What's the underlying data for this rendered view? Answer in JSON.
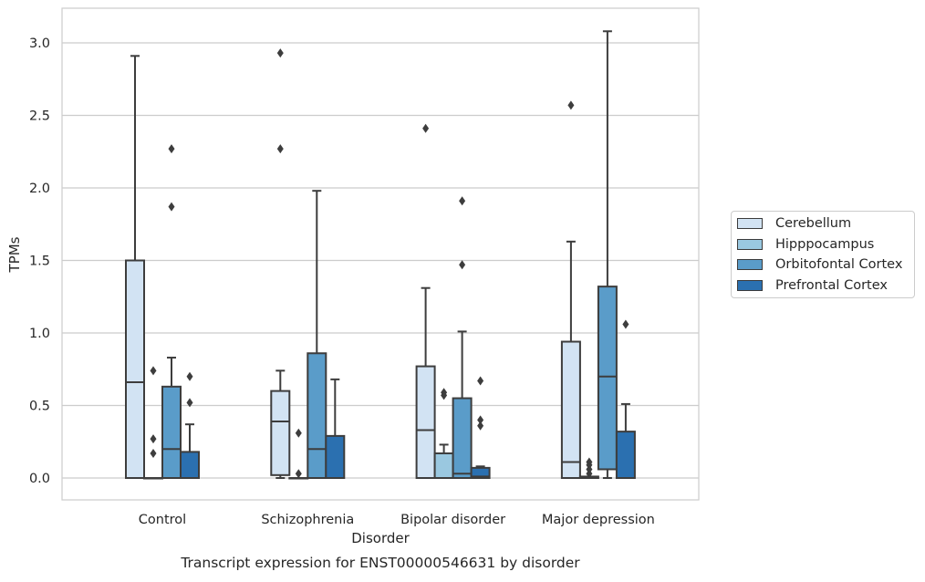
{
  "chart_data": {
    "type": "box",
    "xlabel": "Disorder",
    "ylabel": "TPMs",
    "caption": "Transcript expression for ENST00000546631 by disorder",
    "ylim": [
      -0.15,
      3.24
    ],
    "yticks": [
      "0.0",
      "0.5",
      "1.0",
      "1.5",
      "2.0",
      "2.5",
      "3.0"
    ],
    "categories": [
      "Control",
      "Schizophrenia",
      "Bipolar disorder",
      "Major depression"
    ],
    "grid": "horizontal",
    "legend_position": "right",
    "series": [
      {
        "name": "Cerebellum",
        "color": "#d2e3f3",
        "boxes": [
          {
            "whislo": 0.0,
            "q1": 0.0,
            "med": 0.66,
            "q3": 1.5,
            "whishi": 2.91,
            "fliers": []
          },
          {
            "whislo": 0.0,
            "q1": 0.02,
            "med": 0.39,
            "q3": 0.6,
            "whishi": 0.74,
            "fliers": [
              2.27,
              2.93
            ]
          },
          {
            "whislo": 0.0,
            "q1": 0.0,
            "med": 0.33,
            "q3": 0.77,
            "whishi": 1.31,
            "fliers": [
              2.41
            ]
          },
          {
            "whislo": 0.0,
            "q1": 0.0,
            "med": 0.11,
            "q3": 0.94,
            "whishi": 1.63,
            "fliers": [
              2.57
            ]
          }
        ]
      },
      {
        "name": "Hipppocampus",
        "color": "#9ac8e0",
        "boxes": [
          {
            "whislo": 0.0,
            "q1": 0.0,
            "med": 0.0,
            "q3": 0.0,
            "whishi": 0.0,
            "fliers": [
              0.17,
              0.27,
              0.74
            ]
          },
          {
            "whislo": 0.0,
            "q1": 0.0,
            "med": 0.0,
            "q3": 0.0,
            "whishi": 0.0,
            "fliers": [
              0.03,
              0.31
            ]
          },
          {
            "whislo": 0.0,
            "q1": 0.0,
            "med": 0.0,
            "q3": 0.17,
            "whishi": 0.23,
            "fliers": [
              0.57,
              0.59
            ]
          },
          {
            "whislo": 0.0,
            "q1": 0.0,
            "med": 0.0,
            "q3": 0.01,
            "whishi": 0.01,
            "fliers": [
              0.03,
              0.06,
              0.09,
              0.11
            ]
          }
        ]
      },
      {
        "name": "Orbitofontal Cortex",
        "color": "#5a9cc9",
        "boxes": [
          {
            "whislo": 0.0,
            "q1": 0.0,
            "med": 0.2,
            "q3": 0.63,
            "whishi": 0.83,
            "fliers": [
              1.87,
              2.27
            ]
          },
          {
            "whislo": 0.0,
            "q1": 0.0,
            "med": 0.2,
            "q3": 0.86,
            "whishi": 1.98,
            "fliers": []
          },
          {
            "whislo": 0.0,
            "q1": 0.0,
            "med": 0.03,
            "q3": 0.55,
            "whishi": 1.01,
            "fliers": [
              1.47,
              1.91
            ]
          },
          {
            "whislo": 0.0,
            "q1": 0.06,
            "med": 0.7,
            "q3": 1.32,
            "whishi": 3.08,
            "fliers": []
          }
        ]
      },
      {
        "name": "Prefrontal Cortex",
        "color": "#2b70b0",
        "boxes": [
          {
            "whislo": 0.0,
            "q1": 0.0,
            "med": 0.0,
            "q3": 0.18,
            "whishi": 0.37,
            "fliers": [
              0.52,
              0.7
            ]
          },
          {
            "whislo": 0.0,
            "q1": 0.0,
            "med": 0.0,
            "q3": 0.29,
            "whishi": 0.68,
            "fliers": []
          },
          {
            "whislo": 0.0,
            "q1": 0.0,
            "med": 0.01,
            "q3": 0.07,
            "whishi": 0.08,
            "fliers": [
              0.36,
              0.4,
              0.67
            ]
          },
          {
            "whislo": 0.0,
            "q1": 0.0,
            "med": 0.0,
            "q3": 0.32,
            "whishi": 0.51,
            "fliers": [
              1.06
            ]
          }
        ]
      }
    ]
  }
}
